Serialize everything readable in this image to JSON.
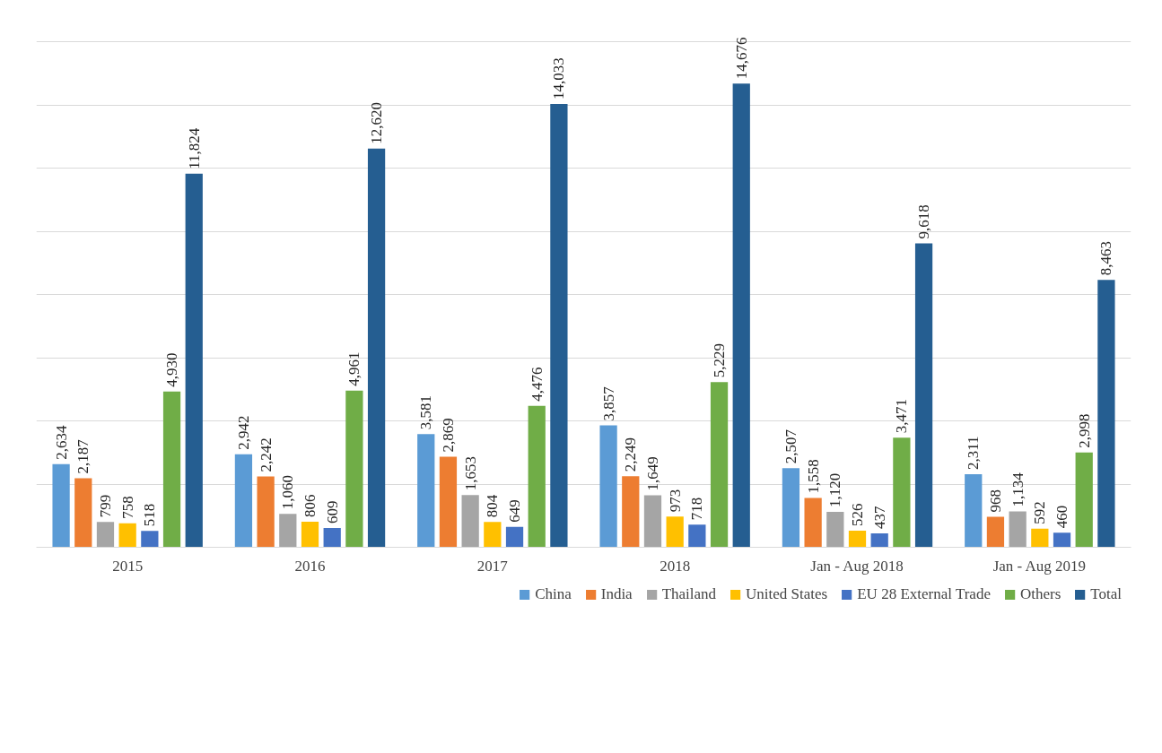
{
  "chart_data": {
    "type": "bar",
    "categories": [
      "2015",
      "2016",
      "2017",
      "2018",
      "Jan - Aug 2018",
      "Jan - Aug 2019"
    ],
    "series": [
      {
        "name": "China",
        "color": "#5b9bd5",
        "values": [
          2634,
          2942,
          3581,
          3857,
          2507,
          2311
        ],
        "value_labels": [
          "2,634",
          "2,942",
          "3,581",
          "3,857",
          "2,507",
          "2,311"
        ]
      },
      {
        "name": "India",
        "color": "#ed7d31",
        "values": [
          2187,
          2242,
          2869,
          2249,
          1558,
          968
        ],
        "value_labels": [
          "2,187",
          "2,242",
          "2,869",
          "2,249",
          "1,558",
          "968"
        ]
      },
      {
        "name": "Thailand",
        "color": "#a5a5a5",
        "values": [
          799,
          1060,
          1653,
          1649,
          1120,
          1134
        ],
        "value_labels": [
          "799",
          "1,060",
          "1,653",
          "1,649",
          "1,120",
          "1,134"
        ]
      },
      {
        "name": "United States",
        "color": "#ffc000",
        "values": [
          758,
          806,
          804,
          973,
          526,
          592
        ],
        "value_labels": [
          "758",
          "806",
          "804",
          "973",
          "526",
          "592"
        ]
      },
      {
        "name": "EU 28 External Trade",
        "color": "#4472c4",
        "values": [
          518,
          609,
          649,
          718,
          437,
          460
        ],
        "value_labels": [
          "518",
          "609",
          "649",
          "718",
          "437",
          "460"
        ]
      },
      {
        "name": "Others",
        "color": "#70ad47",
        "values": [
          4930,
          4961,
          4476,
          5229,
          3471,
          2998
        ],
        "value_labels": [
          "4,930",
          "4,961",
          "4,476",
          "5,229",
          "3,471",
          "2,998"
        ]
      },
      {
        "name": "Total",
        "color": "#255e91",
        "values": [
          11824,
          12620,
          14033,
          14676,
          9618,
          8463
        ],
        "value_labels": [
          "11,824",
          "12,620",
          "14,033",
          "14,676",
          "9,618",
          "8,463"
        ]
      }
    ],
    "yticks": [
      {
        "value": 0,
        "label": null
      },
      {
        "value": 2000,
        "label": null
      },
      {
        "value": 4000,
        "label": null
      },
      {
        "value": 6000,
        "label": null
      },
      {
        "value": 8000,
        "label": null
      },
      {
        "value": 10000,
        "label": null
      },
      {
        "value": 12000,
        "label": null
      },
      {
        "value": 14000,
        "label": null
      },
      {
        "value": 16000,
        "label": null
      }
    ],
    "grid": "y",
    "legend": "bottom",
    "tick_labels": "x"
  }
}
